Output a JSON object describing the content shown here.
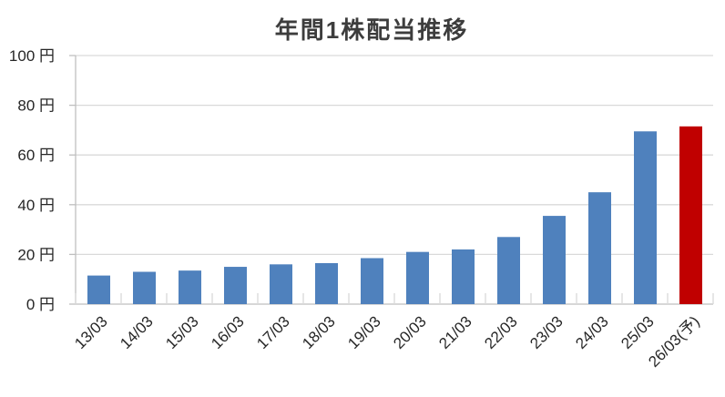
{
  "chart_data": {
    "type": "bar",
    "title": "年間1株配当推移",
    "xlabel": "",
    "ylabel": "",
    "unit": "円",
    "ylim": [
      0,
      100
    ],
    "ytick_step": 20,
    "ytick_labels": [
      "0 円",
      "20 円",
      "40 円",
      "60 円",
      "80 円",
      "100 円"
    ],
    "categories": [
      "13/03",
      "14/03",
      "15/03",
      "16/03",
      "17/03",
      "18/03",
      "19/03",
      "20/03",
      "21/03",
      "22/03",
      "23/03",
      "24/03",
      "25/03",
      "26/03(予)"
    ],
    "values": [
      11.5,
      13,
      13.5,
      15,
      16,
      16.5,
      18.5,
      21,
      22,
      27,
      35.5,
      45,
      69.5,
      71.5
    ],
    "forecast_index": 13,
    "forecast_category": "26/03(予)",
    "legend": "none",
    "grid": "horizontal",
    "x_label_rotation_deg": 45,
    "colors": {
      "bar": "#4F81BD",
      "forecast_bar": "#C00000",
      "gridline": "#D9D9D9",
      "axis_line": "#BFBFBF",
      "tick_text": "#262626",
      "title_text": "#3D3D3D",
      "background": "#FFFFFF"
    }
  }
}
